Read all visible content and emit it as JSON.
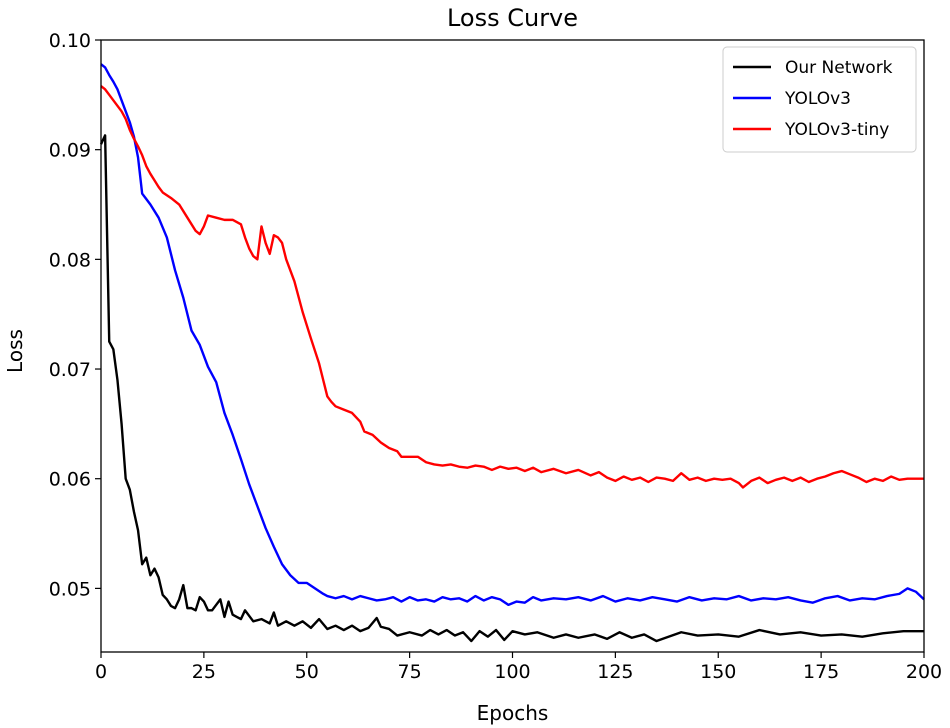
{
  "chart_data": {
    "type": "line",
    "title": "Loss Curve",
    "xlabel": "Epochs",
    "ylabel": "Loss",
    "xlim": [
      0,
      200
    ],
    "ylim": [
      0.0442,
      0.1
    ],
    "xticks": [
      0,
      25,
      50,
      75,
      100,
      125,
      150,
      175,
      200
    ],
    "yticks": [
      0.05,
      0.06,
      0.07,
      0.08,
      0.09,
      0.1
    ],
    "xtick_labels": [
      "0",
      "25",
      "50",
      "75",
      "100",
      "125",
      "150",
      "175",
      "200"
    ],
    "ytick_labels": [
      "0.05",
      "0.06",
      "0.07",
      "0.08",
      "0.09",
      "0.10"
    ],
    "legend_position": "top-right",
    "grid": false,
    "series": [
      {
        "name": "Our Network",
        "color": "#000000",
        "points": [
          [
            0,
            0.0905
          ],
          [
            1,
            0.0913
          ],
          [
            2,
            0.0725
          ],
          [
            3,
            0.0718
          ],
          [
            4,
            0.069
          ],
          [
            5,
            0.065
          ],
          [
            6,
            0.06
          ],
          [
            7,
            0.059
          ],
          [
            8,
            0.057
          ],
          [
            9,
            0.0553
          ],
          [
            10,
            0.0522
          ],
          [
            11,
            0.0528
          ],
          [
            12,
            0.0512
          ],
          [
            13,
            0.0518
          ],
          [
            14,
            0.051
          ],
          [
            15,
            0.0494
          ],
          [
            16,
            0.049
          ],
          [
            17,
            0.0484
          ],
          [
            18,
            0.0482
          ],
          [
            19,
            0.049
          ],
          [
            20,
            0.0503
          ],
          [
            21,
            0.0482
          ],
          [
            22,
            0.0482
          ],
          [
            23,
            0.048
          ],
          [
            24,
            0.0492
          ],
          [
            25,
            0.0488
          ],
          [
            26,
            0.048
          ],
          [
            27,
            0.048
          ],
          [
            28,
            0.0485
          ],
          [
            29,
            0.049
          ],
          [
            30,
            0.0474
          ],
          [
            31,
            0.0488
          ],
          [
            32,
            0.0476
          ],
          [
            33,
            0.0474
          ],
          [
            34,
            0.0472
          ],
          [
            35,
            0.048
          ],
          [
            37,
            0.047
          ],
          [
            39,
            0.0472
          ],
          [
            41,
            0.0468
          ],
          [
            42,
            0.0478
          ],
          [
            43,
            0.0466
          ],
          [
            45,
            0.047
          ],
          [
            47,
            0.0466
          ],
          [
            49,
            0.047
          ],
          [
            51,
            0.0464
          ],
          [
            53,
            0.0472
          ],
          [
            55,
            0.0463
          ],
          [
            57,
            0.0466
          ],
          [
            59,
            0.0462
          ],
          [
            61,
            0.0466
          ],
          [
            63,
            0.0461
          ],
          [
            65,
            0.0464
          ],
          [
            67,
            0.0473
          ],
          [
            68,
            0.0465
          ],
          [
            70,
            0.0463
          ],
          [
            72,
            0.0457
          ],
          [
            75,
            0.046
          ],
          [
            78,
            0.0457
          ],
          [
            80,
            0.0462
          ],
          [
            82,
            0.0458
          ],
          [
            84,
            0.0462
          ],
          [
            86,
            0.0457
          ],
          [
            88,
            0.046
          ],
          [
            90,
            0.0452
          ],
          [
            92,
            0.0461
          ],
          [
            94,
            0.0456
          ],
          [
            96,
            0.0462
          ],
          [
            98,
            0.0453
          ],
          [
            100,
            0.0461
          ],
          [
            103,
            0.0458
          ],
          [
            106,
            0.046
          ],
          [
            110,
            0.0455
          ],
          [
            113,
            0.0458
          ],
          [
            116,
            0.0455
          ],
          [
            120,
            0.0458
          ],
          [
            123,
            0.0454
          ],
          [
            126,
            0.046
          ],
          [
            129,
            0.0455
          ],
          [
            132,
            0.0458
          ],
          [
            135,
            0.0452
          ],
          [
            138,
            0.0456
          ],
          [
            141,
            0.046
          ],
          [
            145,
            0.0457
          ],
          [
            150,
            0.0458
          ],
          [
            155,
            0.0456
          ],
          [
            160,
            0.0462
          ],
          [
            165,
            0.0458
          ],
          [
            170,
            0.046
          ],
          [
            175,
            0.0457
          ],
          [
            180,
            0.0458
          ],
          [
            185,
            0.0456
          ],
          [
            190,
            0.0459
          ],
          [
            195,
            0.0461
          ],
          [
            200,
            0.0461
          ]
        ]
      },
      {
        "name": "YOLOv3",
        "color": "#0000ff",
        "points": [
          [
            0,
            0.0978
          ],
          [
            1,
            0.0975
          ],
          [
            2,
            0.0968
          ],
          [
            3,
            0.0962
          ],
          [
            4,
            0.0955
          ],
          [
            5,
            0.0945
          ],
          [
            6,
            0.0935
          ],
          [
            7,
            0.0925
          ],
          [
            8,
            0.0912
          ],
          [
            9,
            0.0893
          ],
          [
            10,
            0.086
          ],
          [
            11,
            0.0855
          ],
          [
            12,
            0.085
          ],
          [
            14,
            0.0838
          ],
          [
            16,
            0.082
          ],
          [
            18,
            0.079
          ],
          [
            20,
            0.0765
          ],
          [
            22,
            0.0735
          ],
          [
            24,
            0.0722
          ],
          [
            26,
            0.0702
          ],
          [
            28,
            0.0688
          ],
          [
            30,
            0.066
          ],
          [
            32,
            0.064
          ],
          [
            34,
            0.0618
          ],
          [
            36,
            0.0595
          ],
          [
            38,
            0.0575
          ],
          [
            40,
            0.0555
          ],
          [
            42,
            0.0538
          ],
          [
            44,
            0.0522
          ],
          [
            46,
            0.0512
          ],
          [
            48,
            0.0505
          ],
          [
            50,
            0.0505
          ],
          [
            52,
            0.05
          ],
          [
            54,
            0.0495
          ],
          [
            55,
            0.0493
          ],
          [
            57,
            0.0491
          ],
          [
            59,
            0.0493
          ],
          [
            61,
            0.049
          ],
          [
            63,
            0.0493
          ],
          [
            65,
            0.0491
          ],
          [
            67,
            0.0489
          ],
          [
            69,
            0.049
          ],
          [
            71,
            0.0492
          ],
          [
            73,
            0.0488
          ],
          [
            75,
            0.0492
          ],
          [
            77,
            0.0489
          ],
          [
            79,
            0.049
          ],
          [
            81,
            0.0488
          ],
          [
            83,
            0.0492
          ],
          [
            85,
            0.049
          ],
          [
            87,
            0.0491
          ],
          [
            89,
            0.0488
          ],
          [
            91,
            0.0493
          ],
          [
            93,
            0.0489
          ],
          [
            95,
            0.0492
          ],
          [
            97,
            0.049
          ],
          [
            99,
            0.0485
          ],
          [
            101,
            0.0488
          ],
          [
            103,
            0.0487
          ],
          [
            105,
            0.0492
          ],
          [
            107,
            0.0489
          ],
          [
            110,
            0.0491
          ],
          [
            113,
            0.049
          ],
          [
            116,
            0.0492
          ],
          [
            119,
            0.0489
          ],
          [
            122,
            0.0493
          ],
          [
            125,
            0.0488
          ],
          [
            128,
            0.0491
          ],
          [
            131,
            0.0489
          ],
          [
            134,
            0.0492
          ],
          [
            137,
            0.049
          ],
          [
            140,
            0.0488
          ],
          [
            143,
            0.0492
          ],
          [
            146,
            0.0489
          ],
          [
            149,
            0.0491
          ],
          [
            152,
            0.049
          ],
          [
            155,
            0.0493
          ],
          [
            158,
            0.0489
          ],
          [
            161,
            0.0491
          ],
          [
            164,
            0.049
          ],
          [
            167,
            0.0492
          ],
          [
            170,
            0.0489
          ],
          [
            173,
            0.0487
          ],
          [
            176,
            0.0491
          ],
          [
            179,
            0.0493
          ],
          [
            182,
            0.0489
          ],
          [
            185,
            0.0491
          ],
          [
            188,
            0.049
          ],
          [
            191,
            0.0493
          ],
          [
            194,
            0.0495
          ],
          [
            196,
            0.05
          ],
          [
            198,
            0.0497
          ],
          [
            200,
            0.049
          ]
        ]
      },
      {
        "name": "YOLOv3-tiny",
        "color": "#ff0000",
        "points": [
          [
            0,
            0.0958
          ],
          [
            1,
            0.0955
          ],
          [
            2,
            0.095
          ],
          [
            3,
            0.0945
          ],
          [
            4,
            0.094
          ],
          [
            5,
            0.0935
          ],
          [
            6,
            0.0928
          ],
          [
            7,
            0.0918
          ],
          [
            8,
            0.091
          ],
          [
            9,
            0.0903
          ],
          [
            10,
            0.0895
          ],
          [
            11,
            0.0885
          ],
          [
            12,
            0.0878
          ],
          [
            13,
            0.0872
          ],
          [
            14,
            0.0866
          ],
          [
            15,
            0.0861
          ],
          [
            17,
            0.0856
          ],
          [
            19,
            0.085
          ],
          [
            21,
            0.0838
          ],
          [
            23,
            0.0826
          ],
          [
            24,
            0.0823
          ],
          [
            25,
            0.083
          ],
          [
            26,
            0.084
          ],
          [
            28,
            0.0838
          ],
          [
            30,
            0.0836
          ],
          [
            32,
            0.0836
          ],
          [
            34,
            0.0832
          ],
          [
            35,
            0.082
          ],
          [
            36,
            0.081
          ],
          [
            37,
            0.0803
          ],
          [
            38,
            0.08
          ],
          [
            39,
            0.083
          ],
          [
            40,
            0.0815
          ],
          [
            41,
            0.0805
          ],
          [
            42,
            0.0822
          ],
          [
            43,
            0.082
          ],
          [
            44,
            0.0815
          ],
          [
            45,
            0.08
          ],
          [
            47,
            0.078
          ],
          [
            49,
            0.0752
          ],
          [
            51,
            0.0728
          ],
          [
            53,
            0.0705
          ],
          [
            54,
            0.069
          ],
          [
            55,
            0.0675
          ],
          [
            56,
            0.067
          ],
          [
            57,
            0.0666
          ],
          [
            59,
            0.0663
          ],
          [
            61,
            0.066
          ],
          [
            63,
            0.0652
          ],
          [
            64,
            0.0643
          ],
          [
            66,
            0.064
          ],
          [
            68,
            0.0633
          ],
          [
            70,
            0.0628
          ],
          [
            72,
            0.0625
          ],
          [
            73,
            0.062
          ],
          [
            75,
            0.062
          ],
          [
            77,
            0.062
          ],
          [
            79,
            0.0615
          ],
          [
            81,
            0.0613
          ],
          [
            83,
            0.0612
          ],
          [
            85,
            0.0613
          ],
          [
            87,
            0.0611
          ],
          [
            89,
            0.061
          ],
          [
            91,
            0.0612
          ],
          [
            93,
            0.0611
          ],
          [
            95,
            0.0608
          ],
          [
            97,
            0.0611
          ],
          [
            99,
            0.0609
          ],
          [
            101,
            0.061
          ],
          [
            103,
            0.0607
          ],
          [
            105,
            0.061
          ],
          [
            107,
            0.0606
          ],
          [
            110,
            0.0609
          ],
          [
            113,
            0.0605
          ],
          [
            116,
            0.0608
          ],
          [
            119,
            0.0603
          ],
          [
            121,
            0.0606
          ],
          [
            123,
            0.0601
          ],
          [
            125,
            0.0598
          ],
          [
            127,
            0.0602
          ],
          [
            129,
            0.0599
          ],
          [
            131,
            0.0601
          ],
          [
            133,
            0.0597
          ],
          [
            135,
            0.0601
          ],
          [
            137,
            0.06
          ],
          [
            139,
            0.0598
          ],
          [
            141,
            0.0605
          ],
          [
            143,
            0.0599
          ],
          [
            145,
            0.0601
          ],
          [
            147,
            0.0598
          ],
          [
            149,
            0.06
          ],
          [
            151,
            0.0599
          ],
          [
            153,
            0.06
          ],
          [
            155,
            0.0596
          ],
          [
            156,
            0.0592
          ],
          [
            158,
            0.0598
          ],
          [
            160,
            0.0601
          ],
          [
            162,
            0.0596
          ],
          [
            164,
            0.0599
          ],
          [
            166,
            0.0601
          ],
          [
            168,
            0.0598
          ],
          [
            170,
            0.0601
          ],
          [
            172,
            0.0597
          ],
          [
            174,
            0.06
          ],
          [
            176,
            0.0602
          ],
          [
            178,
            0.0605
          ],
          [
            180,
            0.0607
          ],
          [
            182,
            0.0604
          ],
          [
            184,
            0.0601
          ],
          [
            186,
            0.0597
          ],
          [
            188,
            0.06
          ],
          [
            190,
            0.0598
          ],
          [
            192,
            0.0602
          ],
          [
            194,
            0.0599
          ],
          [
            196,
            0.06
          ],
          [
            198,
            0.06
          ],
          [
            200,
            0.06
          ]
        ]
      }
    ]
  }
}
